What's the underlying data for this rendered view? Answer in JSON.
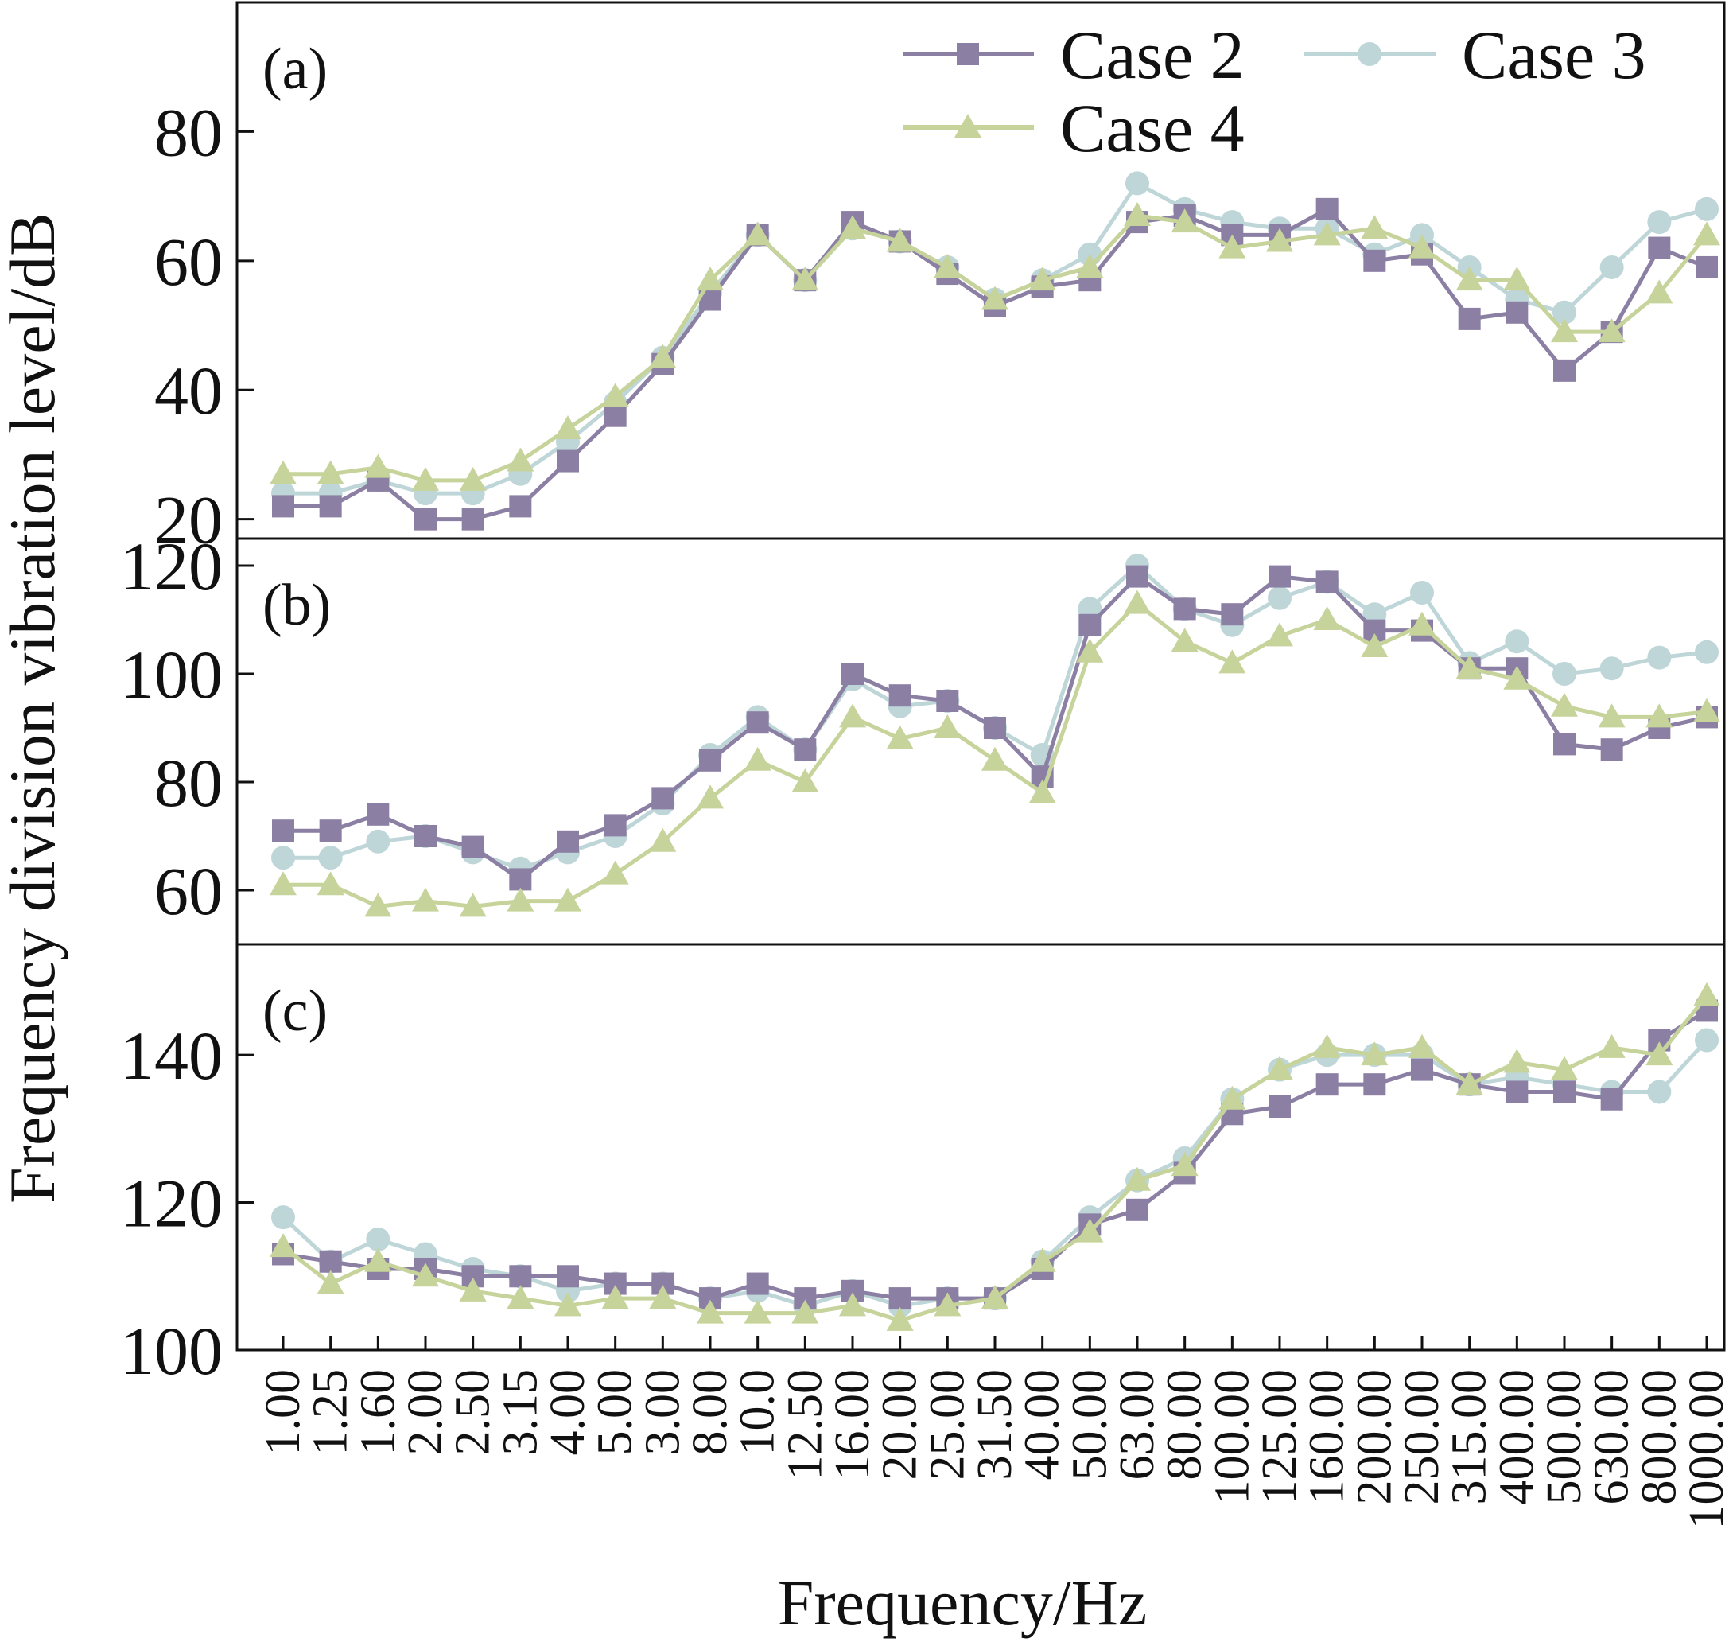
{
  "chart_data": {
    "type": "line",
    "xlabel": "Frequency/Hz",
    "ylabel": "Frequency division vibration level/dB",
    "x": [
      "1.00",
      "1.25",
      "1.60",
      "2.00",
      "2.50",
      "3.15",
      "4.00",
      "5.00",
      "3.00",
      "8.00",
      "10.0",
      "12.50",
      "16.00",
      "20.00",
      "25.00",
      "31.50",
      "40.00",
      "50.00",
      "63.00",
      "80.00",
      "100.00",
      "125.00",
      "160.00",
      "200.00",
      "250.00",
      "315.00",
      "400.00",
      "500.00",
      "630.00",
      "800.00",
      "1000.00"
    ],
    "legend": {
      "placement": "top-right",
      "entries": [
        {
          "label": "Case 2",
          "marker": "square",
          "color": "#8b7fa3"
        },
        {
          "label": "Case 3",
          "marker": "circle",
          "color": "#bfd6d9"
        },
        {
          "label": "Case 4",
          "marker": "triangle",
          "color": "#c6d39a"
        }
      ]
    },
    "panels": [
      {
        "label": "(a)",
        "ylim": [
          17,
          100
        ],
        "yticks": [
          20,
          40,
          60,
          80
        ],
        "series": [
          {
            "name": "Case 2",
            "values": [
              22,
              22,
              26,
              20,
              20,
              22,
              29,
              36,
              44,
              54,
              64,
              57,
              66,
              63,
              58,
              53,
              56,
              57,
              66,
              67,
              64,
              64,
              68,
              60,
              61,
              51,
              52,
              43,
              49,
              62,
              59
            ]
          },
          {
            "name": "Case 3",
            "values": [
              24,
              24,
              26,
              24,
              24,
              27,
              32,
              38,
              45,
              55,
              64,
              57,
              65,
              63,
              59,
              54,
              57,
              61,
              72,
              68,
              66,
              65,
              65,
              61,
              64,
              59,
              54,
              52,
              59,
              66,
              68
            ]
          },
          {
            "name": "Case 4",
            "values": [
              27,
              27,
              28,
              26,
              26,
              29,
              34,
              39,
              45,
              57,
              64,
              57,
              65,
              63,
              59,
              54,
              57,
              59,
              67,
              66,
              62,
              63,
              64,
              65,
              62,
              57,
              57,
              49,
              49,
              55,
              64
            ]
          }
        ]
      },
      {
        "label": "(b)",
        "ylim": [
          50,
          125
        ],
        "yticks": [
          60,
          80,
          100,
          120
        ],
        "series": [
          {
            "name": "Case 2",
            "values": [
              71,
              71,
              74,
              70,
              68,
              62,
              69,
              72,
              77,
              84,
              91,
              86,
              100,
              96,
              95,
              90,
              81,
              109,
              118,
              112,
              111,
              118,
              117,
              108,
              108,
              101,
              101,
              87,
              86,
              90,
              92
            ]
          },
          {
            "name": "Case 3",
            "values": [
              66,
              66,
              69,
              70,
              67,
              64,
              67,
              70,
              76,
              85,
              92,
              86,
              99,
              94,
              95,
              90,
              85,
              112,
              120,
              112,
              109,
              114,
              117,
              111,
              115,
              102,
              106,
              100,
              101,
              103,
              104
            ]
          },
          {
            "name": "Case 4",
            "values": [
              61,
              61,
              57,
              58,
              57,
              58,
              58,
              63,
              69,
              77,
              84,
              80,
              92,
              88,
              90,
              84,
              78,
              104,
              113,
              106,
              102,
              107,
              110,
              105,
              109,
              101,
              99,
              94,
              92,
              92,
              93
            ]
          }
        ]
      },
      {
        "label": "(c)",
        "ylim": [
          100,
          155
        ],
        "yticks": [
          100,
          120,
          140
        ],
        "series": [
          {
            "name": "Case 2",
            "values": [
              113,
              112,
              111,
              111,
              110,
              110,
              110,
              109,
              109,
              107,
              109,
              107,
              108,
              107,
              107,
              107,
              111,
              117,
              119,
              124,
              132,
              133,
              136,
              136,
              138,
              136,
              135,
              135,
              134,
              142,
              146
            ]
          },
          {
            "name": "Case 3",
            "values": [
              118,
              112,
              115,
              113,
              111,
              110,
              108,
              109,
              109,
              107,
              108,
              106,
              108,
              106,
              107,
              107,
              112,
              118,
              123,
              126,
              134,
              138,
              140,
              140,
              140,
              136,
              137,
              136,
              135,
              135,
              142
            ]
          },
          {
            "name": "Case 4",
            "values": [
              114,
              109,
              112,
              110,
              108,
              107,
              106,
              107,
              107,
              105,
              105,
              105,
              106,
              104,
              106,
              107,
              112,
              116,
              123,
              125,
              134,
              138,
              141,
              140,
              141,
              136,
              139,
              138,
              141,
              140,
              148
            ]
          }
        ]
      }
    ]
  }
}
